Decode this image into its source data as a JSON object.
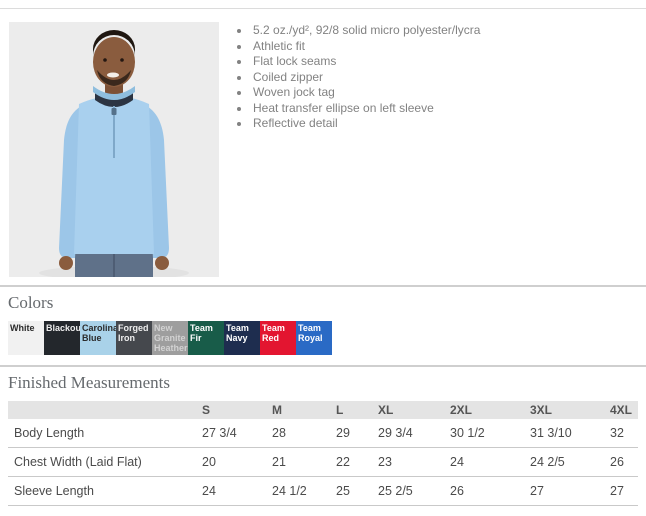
{
  "product": {
    "photo_alt": "Model wearing light blue quarter-zip pullover",
    "features": [
      "5.2 oz./yd², 92/8 solid micro polyester/lycra",
      "Athletic fit",
      "Flat lock seams",
      "Coiled zipper",
      "Woven jock tag",
      "Heat transfer ellipse on left sleeve",
      "Reflective detail"
    ]
  },
  "colors_section": {
    "heading": "Colors",
    "swatches": [
      {
        "name": "White",
        "bg": "#f1f1f1",
        "text": "#2b2b2b"
      },
      {
        "name": "Blackout",
        "bg": "#23272c",
        "text": "#eeeeee"
      },
      {
        "name": "Carolina Blue",
        "bg": "#a9d2e9",
        "text": "#2b2b2b"
      },
      {
        "name": "Forged Iron",
        "bg": "#45484d",
        "text": "#eeeeee"
      },
      {
        "name": "New Granite Heather",
        "bg": "#9e9e9e",
        "text": "#d2d2d2"
      },
      {
        "name": "Team Fir",
        "bg": "#185c49",
        "text": "#ffffff"
      },
      {
        "name": "Team Navy",
        "bg": "#1e2d4f",
        "text": "#ffffff"
      },
      {
        "name": "Team Red",
        "bg": "#e31530",
        "text": "#ffffff"
      },
      {
        "name": "Team Royal",
        "bg": "#2a6ac5",
        "text": "#ffffff"
      }
    ]
  },
  "measurements": {
    "heading": "Finished Measurements",
    "columns": [
      "S",
      "M",
      "L",
      "XL",
      "2XL",
      "3XL",
      "4XL"
    ],
    "rows": [
      {
        "label": "Body Length",
        "values": [
          "27 3/4",
          "28",
          "29",
          "29 3/4",
          "30 1/2",
          "31 3/10",
          "32"
        ]
      },
      {
        "label": "Chest Width (Laid Flat)",
        "values": [
          "20",
          "21",
          "22",
          "23",
          "24",
          "24 2/5",
          "26"
        ]
      },
      {
        "label": "Sleeve Length",
        "values": [
          "24",
          "24 1/2",
          "25",
          "25 2/5",
          "26",
          "27",
          "27"
        ]
      }
    ]
  }
}
